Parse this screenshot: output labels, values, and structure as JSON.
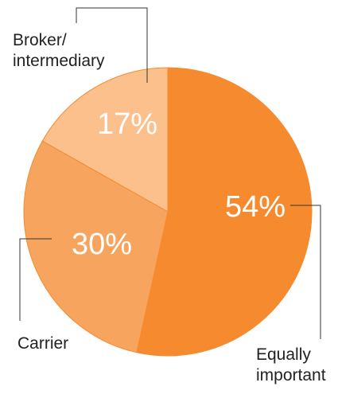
{
  "chart_data": {
    "type": "pie",
    "title": "",
    "slices": [
      {
        "label": "Equally important",
        "label_lines": [
          "Equally",
          "important"
        ],
        "value": 54,
        "value_label": "54%",
        "color": "#f58a2e"
      },
      {
        "label": "Carrier",
        "label_lines": [
          "Carrier"
        ],
        "value": 30,
        "value_label": "30%",
        "color": "#f7a55e"
      },
      {
        "label": "Broker/ intermediary",
        "label_lines": [
          "Broker/",
          "intermediary"
        ],
        "value": 17,
        "value_label": "17%",
        "color": "#fbc08b"
      }
    ],
    "start": "12 o'clock",
    "direction": "clockwise",
    "legend": "none"
  }
}
